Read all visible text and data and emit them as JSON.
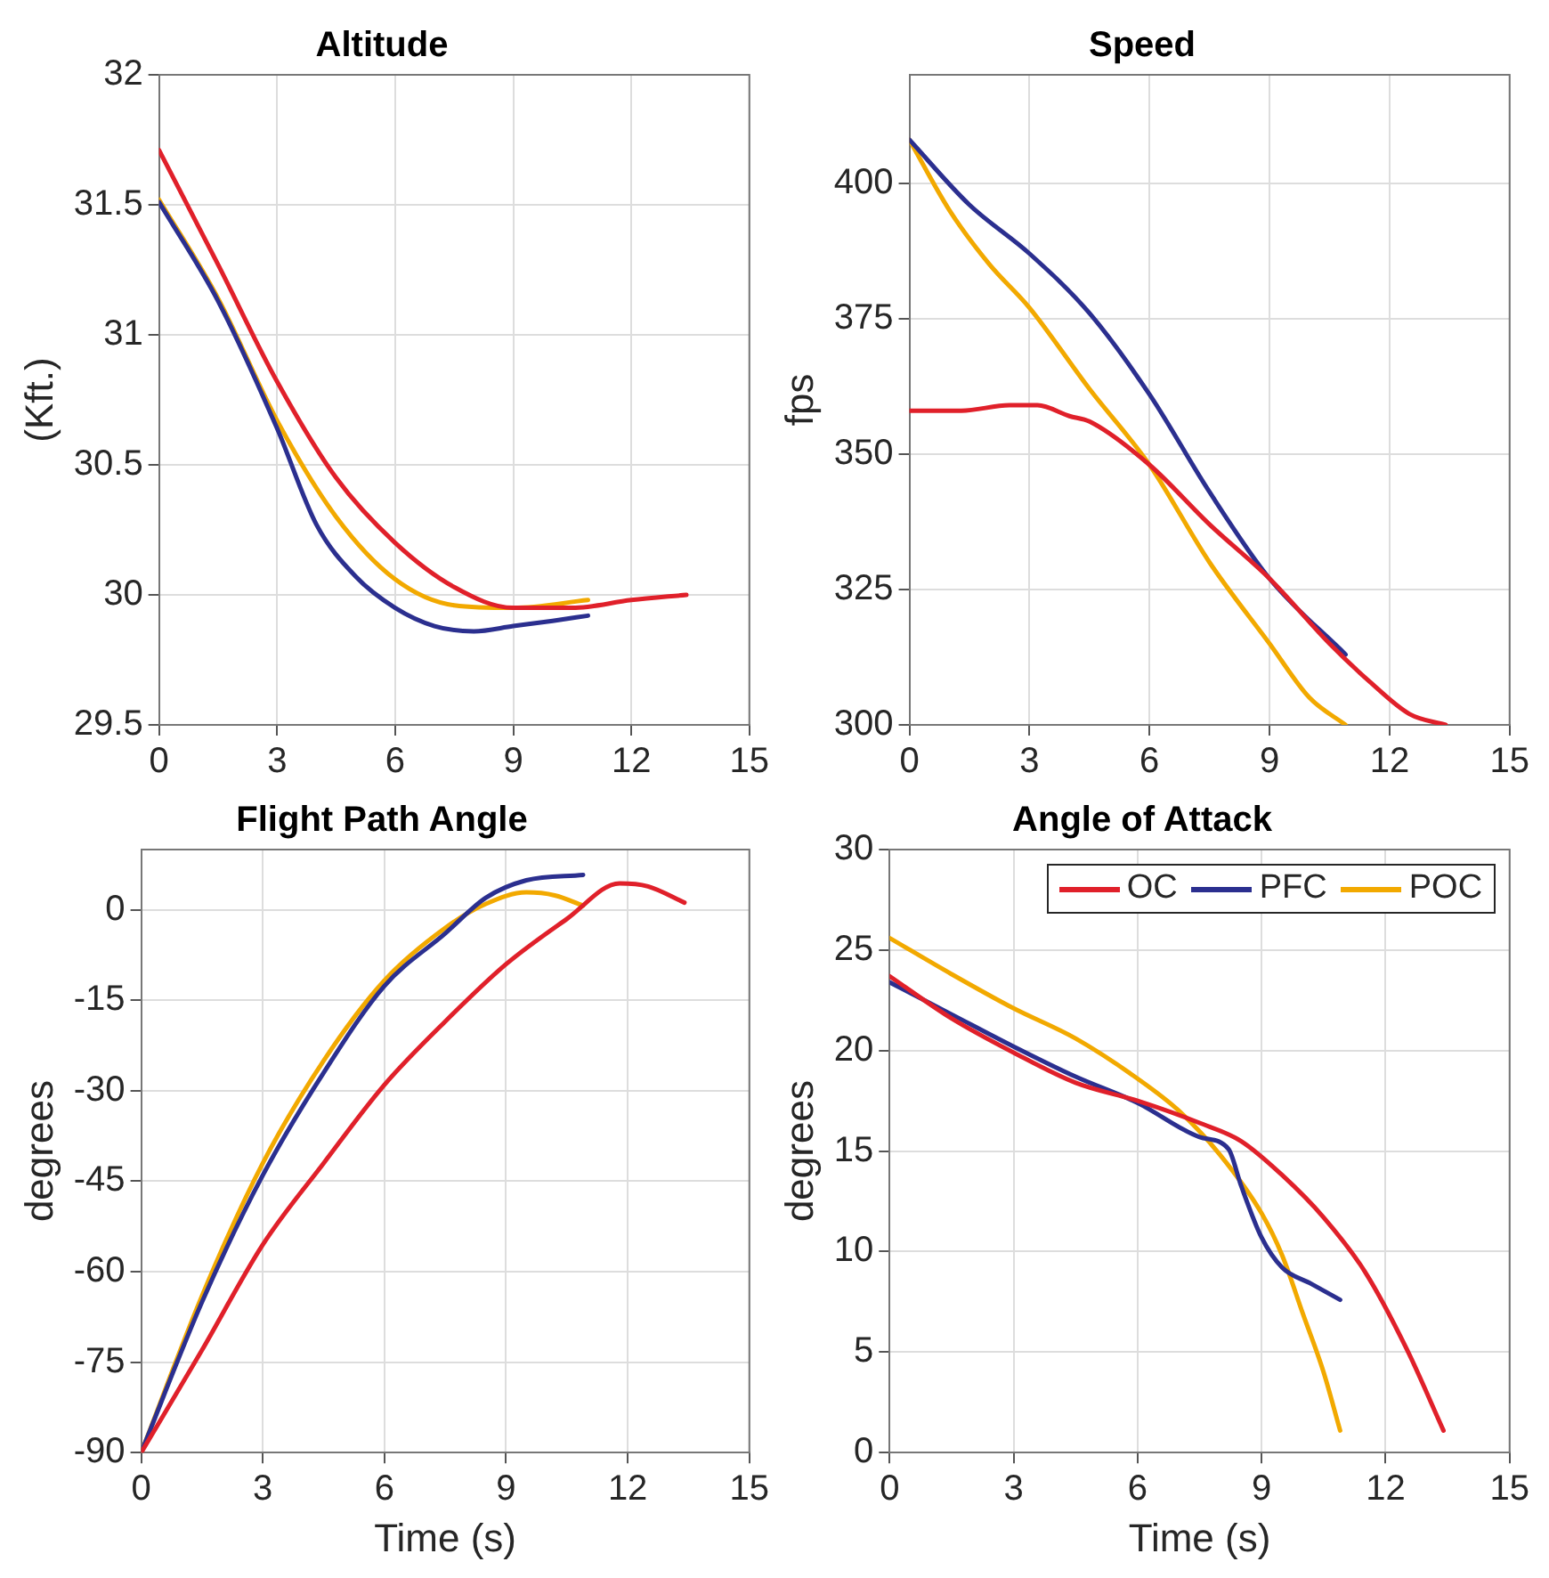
{
  "chart_data": [
    {
      "type": "line",
      "title": "Altitude",
      "ylabel": "(Kft.)",
      "xlim": [
        0,
        15
      ],
      "xticks": [
        0,
        3,
        6,
        9,
        12,
        15
      ],
      "ylim": [
        29.5,
        32
      ],
      "yticks": [
        29.5,
        30,
        30.5,
        31,
        31.5,
        32
      ],
      "grid": true,
      "legend": false,
      "marker": "none",
      "line_style": "solid",
      "series": [
        {
          "color": "#e0202a",
          "x": [
            0,
            1.5,
            3,
            4.5,
            6,
            7.5,
            9,
            10.5,
            12,
            13.4
          ],
          "values": [
            31.71,
            31.27,
            30.82,
            30.45,
            30.2,
            30.03,
            29.95,
            29.95,
            29.98,
            30.0
          ]
        },
        {
          "color": "#2b2f8f",
          "x": [
            0,
            1.5,
            3,
            4,
            5,
            6,
            7,
            8,
            9,
            10,
            10.9
          ],
          "values": [
            31.51,
            31.13,
            30.64,
            30.27,
            30.07,
            29.95,
            29.88,
            29.86,
            29.88,
            29.9,
            29.92
          ]
        },
        {
          "color": "#f2a900",
          "x": [
            0,
            1.5,
            3,
            4.5,
            6,
            7.5,
            9,
            10.9
          ],
          "values": [
            31.52,
            31.14,
            30.67,
            30.3,
            30.06,
            29.96,
            29.95,
            29.98
          ]
        }
      ]
    },
    {
      "type": "line",
      "title": "Speed",
      "ylabel": "fps",
      "xlim": [
        0,
        15
      ],
      "xticks": [
        0,
        3,
        6,
        9,
        12,
        15
      ],
      "ylim": [
        300,
        420
      ],
      "yticks": [
        300,
        325,
        350,
        375,
        400
      ],
      "grid": true,
      "legend": false,
      "marker": "none",
      "line_style": "solid",
      "series": [
        {
          "color": "#e0202a",
          "x": [
            0,
            1.3,
            2.5,
            3.2,
            4,
            4.5,
            6,
            7.5,
            9,
            10.5,
            11.5,
            12.5,
            13.4
          ],
          "values": [
            358,
            358,
            359,
            359,
            357,
            356,
            348,
            337,
            327,
            315,
            308,
            302,
            300
          ]
        },
        {
          "color": "#2b2f8f",
          "x": [
            0,
            1.5,
            3,
            4.5,
            6,
            7.5,
            9,
            10.9
          ],
          "values": [
            408,
            396,
            387,
            376,
            361,
            343,
            327,
            313
          ]
        },
        {
          "color": "#f2a900",
          "x": [
            0,
            1,
            2,
            3,
            4.5,
            6,
            7.5,
            9,
            10,
            10.9
          ],
          "values": [
            408,
            395,
            385,
            377,
            362,
            348,
            330,
            315,
            305,
            300
          ]
        }
      ]
    },
    {
      "type": "line",
      "title": "Flight Path Angle",
      "xlabel": "Time (s)",
      "ylabel": "degrees",
      "xlim": [
        0,
        15
      ],
      "xticks": [
        0,
        3,
        6,
        9,
        12,
        15
      ],
      "ylim": [
        -90,
        10
      ],
      "yticks": [
        -90,
        -75,
        -60,
        -45,
        -30,
        -15,
        0
      ],
      "grid": true,
      "legend": false,
      "marker": "none",
      "line_style": "solid",
      "series": [
        {
          "color": "#e0202a",
          "x": [
            0,
            1.5,
            3,
            4.5,
            6,
            7.5,
            9,
            10.5,
            11.8,
            12.5,
            13.4
          ],
          "values": [
            -90,
            -73,
            -55.5,
            -42,
            -29,
            -18.5,
            -9,
            -1.5,
            4.4,
            3.9,
            1.2
          ]
        },
        {
          "color": "#2b2f8f",
          "x": [
            0,
            1.5,
            3,
            4.5,
            6,
            7.5,
            8.5,
            9.5,
            10.9
          ],
          "values": [
            -90,
            -65,
            -44,
            -27,
            -12.6,
            -3.9,
            2,
            4.9,
            5.8
          ]
        },
        {
          "color": "#f2a900",
          "x": [
            0,
            1.5,
            3,
            4.5,
            6,
            7.5,
            8.5,
            9.5,
            10.2,
            10.9
          ],
          "values": [
            -90,
            -64,
            -42,
            -25,
            -11.7,
            -3,
            1,
            2.9,
            2.4,
            0.7
          ]
        }
      ]
    },
    {
      "type": "line",
      "title": "Angle of Attack",
      "xlabel": "Time (s)",
      "ylabel": "degrees",
      "xlim": [
        0,
        15
      ],
      "xticks": [
        0,
        3,
        6,
        9,
        12,
        15
      ],
      "ylim": [
        0,
        30
      ],
      "yticks": [
        0,
        5,
        10,
        15,
        20,
        25,
        30
      ],
      "grid": true,
      "legend": "top right",
      "marker": "none",
      "line_style": "solid",
      "series": [
        {
          "name": "OC",
          "color": "#e0202a",
          "x": [
            0,
            1.5,
            3,
            4.5,
            6,
            7.5,
            8.5,
            9.5,
            10.5,
            11.5,
            12.5,
            13.4
          ],
          "values": [
            23.7,
            21.6,
            19.9,
            18.4,
            17.5,
            16.4,
            15.5,
            13.8,
            11.7,
            9.0,
            5.2,
            1.1
          ]
        },
        {
          "name": "PFC",
          "color": "#2b2f8f",
          "x": [
            0,
            1.5,
            3,
            4.5,
            6,
            7.5,
            8.2,
            8.5,
            9,
            9.5,
            10.2,
            10.9
          ],
          "values": [
            23.4,
            21.8,
            20.2,
            18.7,
            17.4,
            15.7,
            15.1,
            13.3,
            10.7,
            9.2,
            8.4,
            7.6
          ]
        },
        {
          "name": "POC",
          "color": "#f2a900",
          "x": [
            0,
            1.5,
            3,
            4.5,
            6,
            7,
            8,
            9,
            9.5,
            10,
            10.5,
            10.9
          ],
          "values": [
            25.6,
            23.8,
            22.1,
            20.6,
            18.6,
            17,
            14.8,
            11.9,
            9.8,
            6.9,
            4.0,
            1.1
          ]
        }
      ]
    }
  ]
}
